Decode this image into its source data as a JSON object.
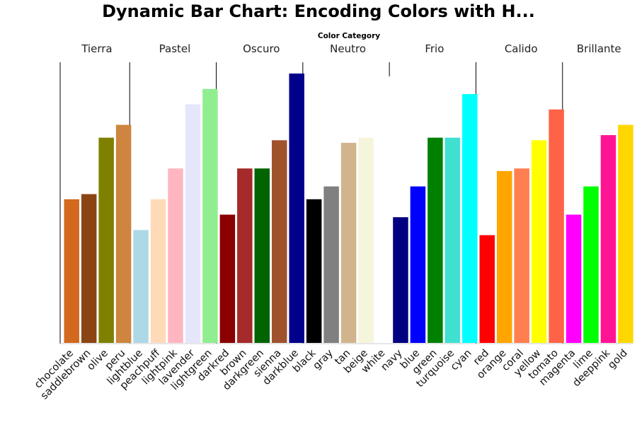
{
  "chart_data": {
    "type": "bar",
    "title": "Dynamic Bar Chart: Encoding Colors with H...",
    "facet_title": "Color Category",
    "xlabel": "",
    "ylabel": "",
    "ylim": [
      0,
      105
    ],
    "grid": false,
    "groups": [
      {
        "name": "Tierra",
        "bars": [
          {
            "category": "chocolate",
            "value": 56,
            "color": "#D2691E"
          },
          {
            "category": "saddlebrown",
            "value": 58,
            "color": "#8B4513"
          },
          {
            "category": "olive",
            "value": 80,
            "color": "#808000"
          },
          {
            "category": "peru",
            "value": 85,
            "color": "#CD853F"
          }
        ]
      },
      {
        "name": "Pastel",
        "bars": [
          {
            "category": "lightblue",
            "value": 44,
            "color": "#ADD8E6"
          },
          {
            "category": "peachpuff",
            "value": 56,
            "color": "#FFDAB9"
          },
          {
            "category": "lightpink",
            "value": 68,
            "color": "#FFB6C1"
          },
          {
            "category": "lavender",
            "value": 93,
            "color": "#E6E6FA"
          },
          {
            "category": "lightgreen",
            "value": 99,
            "color": "#90EE90"
          }
        ]
      },
      {
        "name": "Oscuro",
        "bars": [
          {
            "category": "darkred",
            "value": 50,
            "color": "#8B0000"
          },
          {
            "category": "brown",
            "value": 68,
            "color": "#A52A2A"
          },
          {
            "category": "darkgreen",
            "value": 68,
            "color": "#006400"
          },
          {
            "category": "sienna",
            "value": 79,
            "color": "#A0522D"
          },
          {
            "category": "darkblue",
            "value": 105,
            "color": "#00008B"
          }
        ]
      },
      {
        "name": "Neutro",
        "bars": [
          {
            "category": "black",
            "value": 56,
            "color": "#000000"
          },
          {
            "category": "gray",
            "value": 61,
            "color": "#808080"
          },
          {
            "category": "tan",
            "value": 78,
            "color": "#D2B48C"
          },
          {
            "category": "beige",
            "value": 80,
            "color": "#F5F5DC"
          },
          {
            "category": "white",
            "value": 0,
            "color": "#FFFFFF"
          }
        ]
      },
      {
        "name": "Frio",
        "bars": [
          {
            "category": "navy",
            "value": 49,
            "color": "#000080"
          },
          {
            "category": "blue",
            "value": 61,
            "color": "#0000FF"
          },
          {
            "category": "green",
            "value": 80,
            "color": "#008000"
          },
          {
            "category": "turquoise",
            "value": 80,
            "color": "#40E0D0"
          },
          {
            "category": "cyan",
            "value": 97,
            "color": "#00FFFF"
          }
        ]
      },
      {
        "name": "Calido",
        "bars": [
          {
            "category": "red",
            "value": 42,
            "color": "#FF0000"
          },
          {
            "category": "orange",
            "value": 67,
            "color": "#FFA500"
          },
          {
            "category": "coral",
            "value": 68,
            "color": "#FF7F50"
          },
          {
            "category": "yellow",
            "value": 79,
            "color": "#FFFF00"
          },
          {
            "category": "tomato",
            "value": 91,
            "color": "#FF6347"
          }
        ]
      },
      {
        "name": "Brillante",
        "bars": [
          {
            "category": "magenta",
            "value": 50,
            "color": "#FF00FF"
          },
          {
            "category": "lime",
            "value": 61,
            "color": "#00FF00"
          },
          {
            "category": "deeppink",
            "value": 81,
            "color": "#FF1493"
          },
          {
            "category": "gold",
            "value": 85,
            "color": "#FFD700"
          }
        ]
      }
    ]
  }
}
